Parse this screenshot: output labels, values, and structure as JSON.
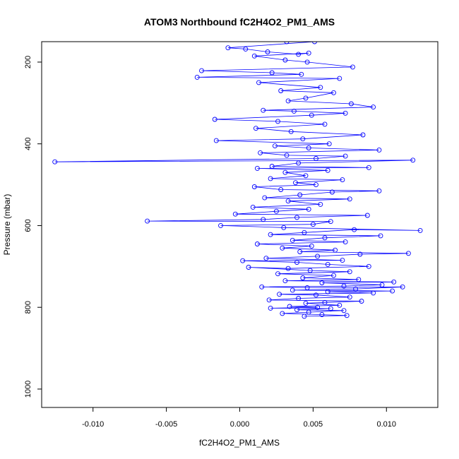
{
  "chart_data": {
    "type": "scatter",
    "title": "ATOM3 Northbound fC2H4O2_PM1_AMS",
    "xlabel": "fC2H4O2_PM1_AMS",
    "ylabel": "Pressure (mbar)",
    "xlim": [
      -0.0135,
      0.0135
    ],
    "ylim": [
      1045,
      150
    ],
    "y_inverted": true,
    "grid": false,
    "connected": true,
    "color": "#0000ff",
    "xticks": [
      -0.01,
      -0.005,
      0.0,
      0.005,
      0.01
    ],
    "xtick_labels": [
      "-0.010",
      "-0.005",
      "0.000",
      "0.005",
      "0.010"
    ],
    "yticks": [
      200,
      400,
      600,
      800,
      1000
    ],
    "ytick_labels": [
      "200",
      "400",
      "600",
      "800",
      "1000"
    ],
    "series": [
      {
        "points": [
          [
            0.0032,
            150
          ],
          [
            0.0051,
            150
          ],
          [
            -0.0008,
            165
          ],
          [
            0.0004,
            168
          ],
          [
            0.0019,
            175
          ],
          [
            0.004,
            181
          ],
          [
            0.0047,
            178
          ],
          [
            0.001,
            185
          ],
          [
            0.0031,
            195
          ],
          [
            0.0046,
            200
          ],
          [
            0.0077,
            212
          ],
          [
            -0.0026,
            221
          ],
          [
            0.0022,
            226
          ],
          [
            0.0042,
            230
          ],
          [
            -0.0029,
            237
          ],
          [
            0.0068,
            240
          ],
          [
            0.0013,
            250
          ],
          [
            0.0055,
            262
          ],
          [
            0.0028,
            270
          ],
          [
            0.0064,
            275
          ],
          [
            0.0045,
            288
          ],
          [
            0.0033,
            295
          ],
          [
            0.0076,
            302
          ],
          [
            0.0091,
            310
          ],
          [
            0.0016,
            318
          ],
          [
            0.0037,
            320
          ],
          [
            0.0072,
            325
          ],
          [
            0.0049,
            330
          ],
          [
            -0.0017,
            340
          ],
          [
            0.0026,
            345
          ],
          [
            0.0058,
            352
          ],
          [
            0.0011,
            362
          ],
          [
            0.0035,
            370
          ],
          [
            0.0084,
            378
          ],
          [
            0.0043,
            388
          ],
          [
            -0.0016,
            392
          ],
          [
            0.0061,
            400
          ],
          [
            0.0024,
            405
          ],
          [
            0.0047,
            410
          ],
          [
            0.0095,
            415
          ],
          [
            0.0014,
            422
          ],
          [
            0.0032,
            428
          ],
          [
            0.0072,
            430
          ],
          [
            0.0052,
            436
          ],
          [
            -0.0126,
            444
          ],
          [
            0.0118,
            440
          ],
          [
            0.004,
            447
          ],
          [
            0.0022,
            455
          ],
          [
            0.0088,
            458
          ],
          [
            0.0012,
            460
          ],
          [
            0.006,
            465
          ],
          [
            0.0031,
            470
          ],
          [
            0.0045,
            478
          ],
          [
            0.0021,
            485
          ],
          [
            0.007,
            488
          ],
          [
            0.0038,
            495
          ],
          [
            0.0052,
            500
          ],
          [
            0.001,
            505
          ],
          [
            0.0028,
            512
          ],
          [
            0.0095,
            515
          ],
          [
            0.0063,
            518
          ],
          [
            0.0041,
            525
          ],
          [
            0.0017,
            532
          ],
          [
            0.0075,
            535
          ],
          [
            0.0033,
            540
          ],
          [
            0.0055,
            548
          ],
          [
            0.0009,
            555
          ],
          [
            0.0047,
            560
          ],
          [
            0.0025,
            565
          ],
          [
            -0.0003,
            572
          ],
          [
            0.0087,
            575
          ],
          [
            0.0039,
            580
          ],
          [
            0.0016,
            585
          ],
          [
            -0.0063,
            589
          ],
          [
            0.0062,
            590
          ],
          [
            0.005,
            597
          ],
          [
            -0.0013,
            600
          ],
          [
            0.003,
            605
          ],
          [
            0.0123,
            612
          ],
          [
            0.0078,
            610
          ],
          [
            0.0044,
            617
          ],
          [
            0.0021,
            622
          ],
          [
            0.0096,
            625
          ],
          [
            0.0058,
            630
          ],
          [
            0.0036,
            636
          ],
          [
            0.0072,
            640
          ],
          [
            0.0012,
            645
          ],
          [
            0.0049,
            650
          ],
          [
            0.0029,
            655
          ],
          [
            0.0065,
            660
          ],
          [
            0.0041,
            664
          ],
          [
            0.0115,
            668
          ],
          [
            0.0082,
            670
          ],
          [
            0.0053,
            675
          ],
          [
            0.0018,
            680
          ],
          [
            0.007,
            685
          ],
          [
            0.0002,
            686
          ],
          [
            0.0039,
            690
          ],
          [
            0.006,
            695
          ],
          [
            0.0088,
            700
          ],
          [
            0.0033,
            705
          ],
          [
            0.0006,
            702
          ],
          [
            0.0048,
            710
          ],
          [
            0.0075,
            713
          ],
          [
            0.0026,
            718
          ],
          [
            0.0064,
            722
          ],
          [
            0.0043,
            728
          ],
          [
            0.0081,
            732
          ],
          [
            0.0031,
            735
          ],
          [
            0.0105,
            738
          ],
          [
            0.0056,
            740
          ],
          [
            0.0097,
            745
          ],
          [
            0.0071,
            748
          ],
          [
            0.0015,
            750
          ],
          [
            0.0046,
            752
          ],
          [
            0.0111,
            750
          ],
          [
            0.0079,
            755
          ],
          [
            0.0036,
            758
          ],
          [
            0.0104,
            760
          ],
          [
            0.006,
            762
          ],
          [
            0.0091,
            765
          ],
          [
            0.0027,
            768
          ],
          [
            0.0052,
            770
          ],
          [
            0.0075,
            775
          ],
          [
            0.004,
            778
          ],
          [
            0.002,
            782
          ],
          [
            0.0083,
            785
          ],
          [
            0.0058,
            788
          ],
          [
            0.0045,
            790
          ],
          [
            0.0068,
            795
          ],
          [
            0.0034,
            798
          ],
          [
            0.0053,
            800
          ],
          [
            0.0021,
            802
          ],
          [
            0.0062,
            803
          ],
          [
            0.0039,
            806
          ],
          [
            0.0071,
            808
          ],
          [
            0.0047,
            812
          ],
          [
            0.0029,
            815
          ],
          [
            0.0056,
            818
          ],
          [
            0.0073,
            820
          ],
          [
            0.0044,
            822
          ]
        ]
      }
    ]
  }
}
